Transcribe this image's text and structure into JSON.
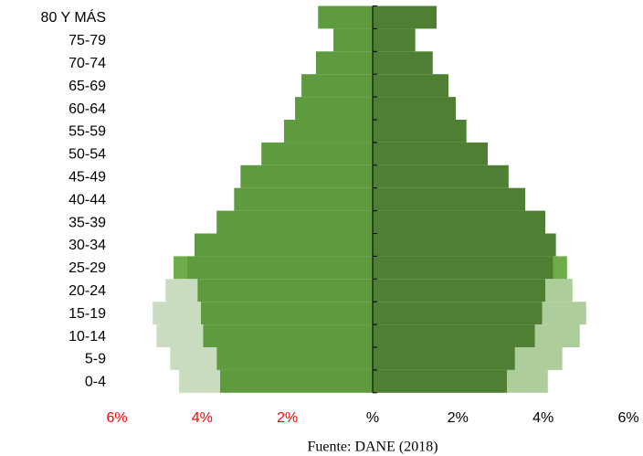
{
  "chart_data": {
    "type": "pyramid",
    "categories": [
      "80 Y MÁS",
      "75-79",
      "70-74",
      "65-69",
      "60-64",
      "55-59",
      "50-54",
      "45-49",
      "40-44",
      "35-39",
      "30-34",
      "25-29",
      "20-24",
      "15-19",
      "10-14",
      "5-9",
      "0-4"
    ],
    "series": [
      {
        "color": "#5e9a3e",
        "side": "left",
        "values": [
          -1.28,
          -0.92,
          -1.33,
          -1.67,
          -1.82,
          -2.08,
          -2.61,
          -3.1,
          -3.25,
          -3.66,
          -4.18,
          -4.35,
          -4.11,
          -4.03,
          -3.98,
          -3.66,
          -3.58
        ]
      },
      {
        "colors": [
          null,
          null,
          null,
          null,
          null,
          null,
          null,
          null,
          null,
          null,
          null,
          "#6dac48",
          "#c9dcbf",
          "#c9dcbf",
          "#c9dcbf",
          "#c9dcbf",
          "#c9dcbf"
        ],
        "side": "left",
        "stack": 0,
        "values": [
          null,
          null,
          null,
          null,
          null,
          null,
          null,
          null,
          null,
          null,
          null,
          -0.32,
          -0.75,
          -1.13,
          -1.09,
          -1.09,
          -0.96
        ]
      },
      {
        "color": "#4e7f33",
        "side": "right",
        "values": [
          1.5,
          1.0,
          1.41,
          1.78,
          1.95,
          2.2,
          2.7,
          3.19,
          3.58,
          4.05,
          4.3,
          4.24,
          4.05,
          3.98,
          3.81,
          3.34,
          3.15
        ]
      },
      {
        "colors": [
          null,
          null,
          null,
          null,
          null,
          null,
          null,
          null,
          null,
          null,
          null,
          "#6dac48",
          "#adcd9b",
          "#adcd9b",
          "#adcd9b",
          "#adcd9b",
          "#adcd9b"
        ],
        "side": "right",
        "stack": 2,
        "values": [
          null,
          null,
          null,
          null,
          null,
          null,
          null,
          null,
          null,
          null,
          null,
          0.32,
          0.64,
          1.03,
          1.05,
          1.11,
          0.96
        ]
      }
    ],
    "xlim": [
      -6,
      6
    ],
    "xticks": [
      {
        "value": -6,
        "label": "6%"
      },
      {
        "value": -4,
        "label": "4%"
      },
      {
        "value": -2,
        "label": "2%"
      },
      {
        "value": 0,
        "label": "%"
      },
      {
        "value": 2,
        "label": "2%"
      },
      {
        "value": 4,
        "label": "4%"
      },
      {
        "value": 6,
        "label": "6%"
      }
    ],
    "negative_tick_color": "#ff0000",
    "source": "Fuente: DANE (2018)"
  }
}
